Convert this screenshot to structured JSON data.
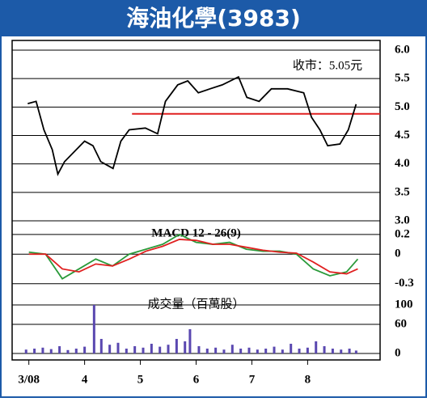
{
  "title": "海油化學(3983)",
  "chart_data": [
    {
      "type": "line",
      "annotation": "收市：5.05元",
      "color": "#000000",
      "x": [
        2.98,
        3.13,
        3.27,
        3.42,
        3.52,
        3.64,
        3.78,
        4.0,
        4.15,
        4.29,
        4.51,
        4.65,
        4.8,
        5.09,
        5.31,
        5.45,
        5.67,
        5.85,
        6.04,
        6.25,
        6.47,
        6.76,
        6.91,
        7.13,
        7.35,
        7.64,
        7.93,
        8.07,
        8.22,
        8.36,
        8.58,
        8.73,
        8.87
      ],
      "values": [
        5.06,
        5.1,
        4.6,
        4.25,
        3.82,
        4.04,
        4.18,
        4.4,
        4.32,
        4.04,
        3.92,
        4.4,
        4.6,
        4.63,
        4.53,
        5.1,
        5.39,
        5.46,
        5.25,
        5.32,
        5.39,
        5.53,
        5.17,
        5.1,
        5.32,
        5.32,
        5.25,
        4.82,
        4.6,
        4.32,
        4.35,
        4.6,
        5.05
      ],
      "ref_line": {
        "value": 4.88,
        "x_from": 4.85,
        "color": "#e02020"
      },
      "xlim": [
        2.7,
        9.3
      ],
      "ylim": [
        3.0,
        6.0
      ],
      "yticks": [
        {
          "value": 6,
          "label": "6.0"
        },
        5.5,
        {
          "value": 5,
          "label": "5.0"
        },
        4.5,
        {
          "value": 4,
          "label": "4.0"
        },
        3.5,
        {
          "value": 3,
          "label": "3.0"
        }
      ]
    },
    {
      "type": "line",
      "title": "MACD 12 - 26(9)",
      "x": [
        3.0,
        3.3,
        3.6,
        3.9,
        4.2,
        4.5,
        4.8,
        5.1,
        5.4,
        5.7,
        6.0,
        6.3,
        6.6,
        6.9,
        7.2,
        7.5,
        7.8,
        8.1,
        8.4,
        8.7,
        8.9
      ],
      "series": [
        {
          "color": "#2a9a3a",
          "values": [
            0.02,
            0.0,
            -0.25,
            -0.15,
            -0.05,
            -0.12,
            0.0,
            0.05,
            0.1,
            0.2,
            0.12,
            0.1,
            0.12,
            0.05,
            0.03,
            0.03,
            0.0,
            -0.15,
            -0.22,
            -0.18,
            -0.05
          ]
        },
        {
          "color": "#e02020",
          "values": [
            0.0,
            0.0,
            -0.15,
            -0.18,
            -0.1,
            -0.12,
            -0.05,
            0.03,
            0.08,
            0.15,
            0.14,
            0.1,
            0.1,
            0.07,
            0.04,
            0.02,
            0.01,
            -0.08,
            -0.18,
            -0.2,
            -0.15
          ]
        }
      ],
      "xlim": [
        2.7,
        9.3
      ],
      "ylim": [
        -0.36,
        0.24
      ],
      "yticks": [
        0.2,
        0,
        -0.3
      ]
    },
    {
      "type": "bar",
      "title": "成交量（百萬股）",
      "color": "#5a48b0",
      "x": [
        2.95,
        3.1,
        3.25,
        3.4,
        3.55,
        3.7,
        3.85,
        4.0,
        4.17,
        4.3,
        4.45,
        4.6,
        4.75,
        4.9,
        5.05,
        5.2,
        5.35,
        5.5,
        5.65,
        5.8,
        5.89,
        6.05,
        6.2,
        6.35,
        6.5,
        6.65,
        6.8,
        6.95,
        7.1,
        7.25,
        7.4,
        7.55,
        7.7,
        7.85,
        8.0,
        8.15,
        8.3,
        8.45,
        8.6,
        8.75,
        8.87
      ],
      "values": [
        8,
        10,
        12,
        9,
        15,
        7,
        10,
        14,
        100,
        30,
        18,
        22,
        10,
        15,
        12,
        20,
        14,
        18,
        30,
        25,
        50,
        15,
        10,
        12,
        8,
        18,
        10,
        12,
        8,
        10,
        14,
        8,
        20,
        10,
        12,
        25,
        15,
        10,
        8,
        10,
        6
      ],
      "xlim": [
        2.7,
        9.3
      ],
      "ylim": [
        0,
        120
      ],
      "yticks": [
        100,
        60,
        0
      ],
      "xticks": [
        {
          "value": 3,
          "label": "3/08"
        },
        4,
        5,
        6,
        7,
        8
      ]
    }
  ]
}
